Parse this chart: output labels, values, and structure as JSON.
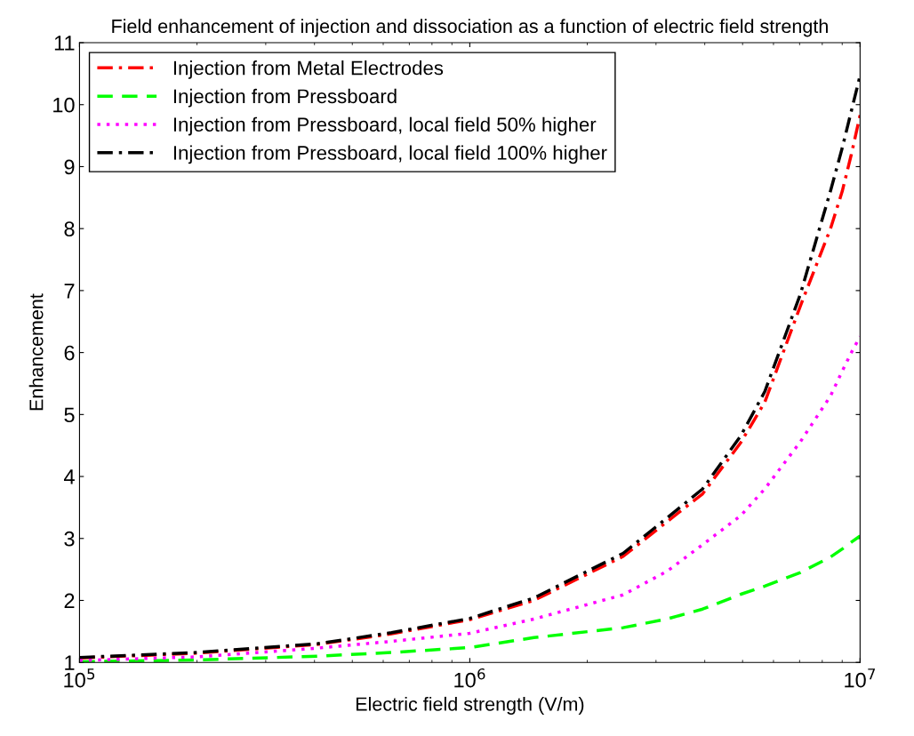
{
  "chart_data": {
    "type": "line",
    "title": "Field enhancement of injection and dissociation as a function of electric field strength",
    "xlabel": "Electric field strength (V/m)",
    "ylabel": "Enhancement",
    "log": "x",
    "xlim": [
      100000,
      10000000
    ],
    "xticks": [
      {
        "value": 100000,
        "label": "10$^{5}$"
      },
      {
        "value": 1000000,
        "label": "10$^{6}$"
      },
      {
        "value": 10000000,
        "label": "10$^{7}$"
      }
    ],
    "ylim": [
      1,
      11
    ],
    "yticks": [
      1,
      2,
      3,
      4,
      5,
      6,
      7,
      8,
      9,
      10,
      11
    ],
    "grid": false,
    "legend": "top left",
    "marker": "none",
    "x": [
      100000,
      200000,
      406000,
      630000,
      1000000,
      1460000,
      2470000,
      3200000,
      3950000,
      4950000,
      5700000,
      7030000,
      8400000,
      9000000,
      9500000,
      10000000
    ],
    "series": [
      {
        "name": "Injection from Metal Electrodes",
        "color": "#ff0000",
        "line_style": "dashdot",
        "values": [
          1.07,
          1.15,
          1.29,
          1.46,
          1.69,
          2.0,
          2.71,
          3.27,
          3.72,
          4.55,
          5.2,
          6.75,
          8.0,
          8.6,
          9.2,
          9.83
        ]
      },
      {
        "name": "Injection from Pressboard",
        "color": "#00ff00",
        "line_style": "dashed",
        "values": [
          1.01,
          1.04,
          1.1,
          1.16,
          1.24,
          1.4,
          1.56,
          1.7,
          1.86,
          2.1,
          2.23,
          2.45,
          2.7,
          2.83,
          2.94,
          3.04
        ]
      },
      {
        "name": "Injection from Pressboard, local field 50% higher",
        "color": "#ff00ff",
        "line_style": "dotted",
        "values": [
          1.03,
          1.09,
          1.23,
          1.34,
          1.47,
          1.7,
          2.09,
          2.47,
          2.9,
          3.37,
          3.8,
          4.56,
          5.3,
          5.7,
          6.0,
          6.26
        ]
      },
      {
        "name": "Injection from Pressboard, local field 100% higher",
        "color": "#000000",
        "line_style": "dashdot",
        "values": [
          1.08,
          1.16,
          1.3,
          1.48,
          1.71,
          2.04,
          2.76,
          3.33,
          3.8,
          4.66,
          5.37,
          6.94,
          8.61,
          9.3,
          9.9,
          10.47
        ]
      }
    ]
  }
}
